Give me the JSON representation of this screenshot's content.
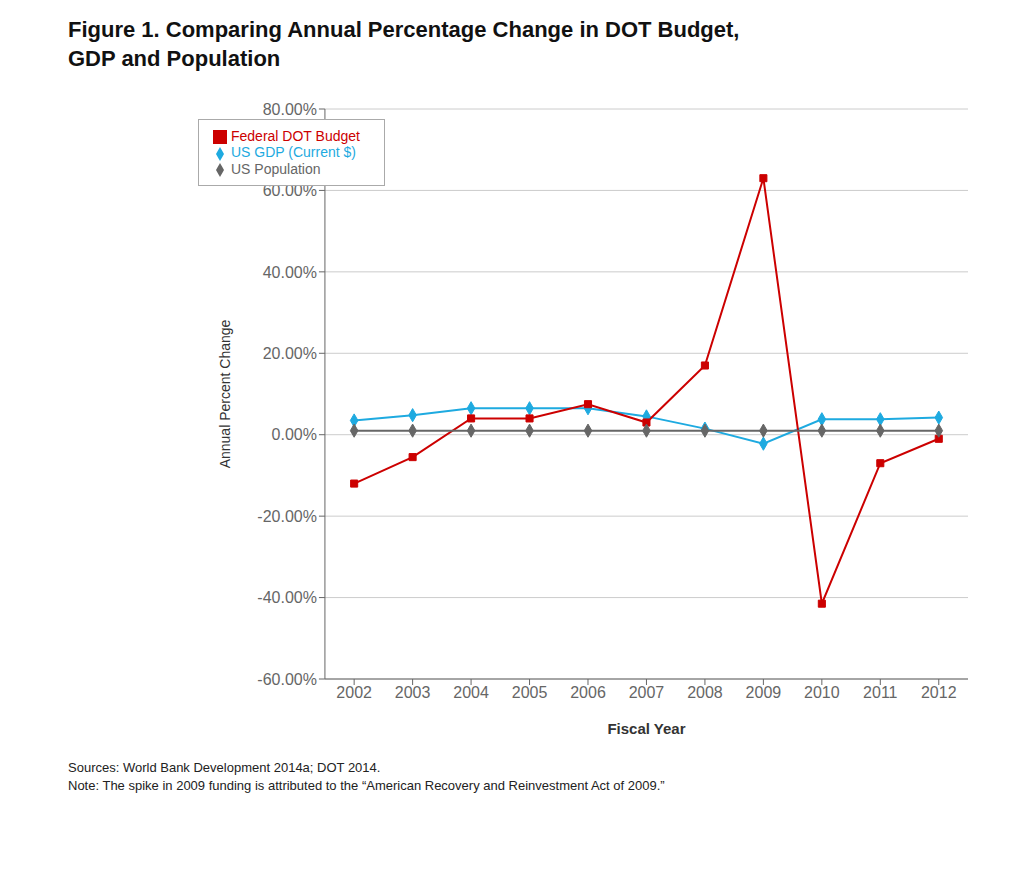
{
  "chart_data": {
    "type": "line",
    "title": "Figure 1. Comparing Annual Percentage Change in DOT Budget,\nGDP and Population",
    "x_label": "Fiscal Year",
    "y_label": "Annual Percent Change",
    "x": [
      2002,
      2003,
      2004,
      2005,
      2006,
      2007,
      2008,
      2009,
      2010,
      2011,
      2012
    ],
    "series": [
      {
        "name": "US GDP (Current $)",
        "color": "#1EAAE0",
        "marker": "diamond",
        "line_style": "solid",
        "values": [
          0.035,
          0.048,
          0.065,
          0.065,
          0.065,
          0.045,
          0.015,
          -0.022,
          0.038,
          0.038,
          0.042
        ]
      },
      {
        "name": "Federal DOT Budget",
        "color": "#CC0000",
        "marker": "square",
        "line_style": "solid",
        "values": [
          -0.12,
          -0.055,
          0.04,
          0.04,
          0.075,
          0.03,
          0.17,
          0.63,
          -0.415,
          -0.07,
          -0.01
        ]
      },
      {
        "name": "US Population",
        "color": "#666666",
        "marker": "diamond",
        "line_style": "solid",
        "values": [
          0.01,
          0.01,
          0.01,
          0.01,
          0.01,
          0.01,
          0.01,
          0.01,
          0.01,
          0.01,
          0.01
        ]
      }
    ],
    "xlim": [
      2001.5,
      2012.5
    ],
    "xticks": [
      2002,
      2003,
      2004,
      2005,
      2006,
      2007,
      2008,
      2009,
      2010,
      2011,
      2012
    ],
    "ylim": [
      -0.6,
      0.8
    ],
    "yticks": [
      {
        "value": -0.6,
        "label": "-60.00%"
      },
      {
        "value": -0.4,
        "label": "-40.00%"
      },
      {
        "value": -0.2,
        "label": "-20.00%"
      },
      {
        "value": 0.0,
        "label": "0.00%"
      },
      {
        "value": 0.2,
        "label": "20.00%"
      },
      {
        "value": 0.4,
        "label": "40.00%"
      },
      {
        "value": 0.6,
        "label": "60.00%"
      },
      {
        "value": 0.8,
        "label": "80.00%"
      }
    ],
    "grid": "y",
    "legend": "upper left",
    "annotations": [
      "Sources: World Bank Development 2014a; DOT 2014.",
      "Note: The spike in 2009 funding is attributed to the “American Recovery and Reinvestment Act of 2009.”"
    ]
  }
}
